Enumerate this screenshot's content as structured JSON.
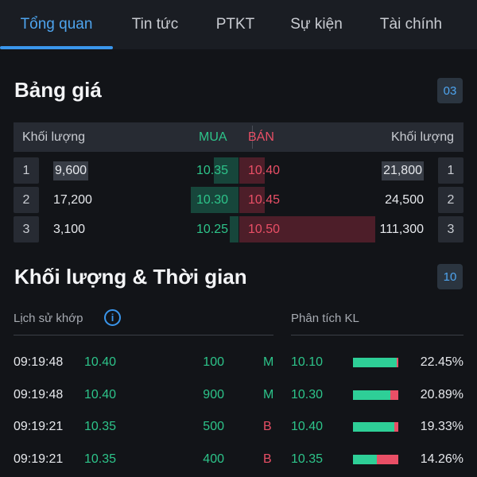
{
  "tabs": [
    {
      "label": "Tổng quan",
      "active": true
    },
    {
      "label": "Tin tức",
      "active": false
    },
    {
      "label": "PTKT",
      "active": false
    },
    {
      "label": "Sự kiện",
      "active": false
    },
    {
      "label": "Tài chính",
      "active": false
    }
  ],
  "price_board": {
    "title": "Bảng giá",
    "level_badge": "03",
    "header": {
      "bid_volume": "Khối lượng",
      "buy": "MUA",
      "sell": "BÁN",
      "ask_volume": "Khối lượng"
    },
    "rows": [
      {
        "idx": "1",
        "bid_volume": "9,600",
        "bid_price": "10.35",
        "ask_price": "10.40",
        "ask_volume": "21,800",
        "idx_right": "1",
        "bid_depth": 0.25,
        "ask_depth": 0.19
      },
      {
        "idx": "2",
        "bid_volume": "17,200",
        "bid_price": "10.30",
        "ask_price": "10.45",
        "ask_volume": "24,500",
        "idx_right": "2",
        "bid_depth": 0.48,
        "ask_depth": 0.19
      },
      {
        "idx": "3",
        "bid_volume": "3,100",
        "bid_price": "10.25",
        "ask_price": "10.50",
        "ask_volume": "111,300",
        "idx_right": "3",
        "bid_depth": 0.09,
        "ask_depth": 1.0
      }
    ]
  },
  "time_sales": {
    "title": "Khối lượng & Thời gian",
    "level_badge": "10",
    "history_label": "Lịch sử khớp",
    "analysis_label": "Phân tích KL",
    "trades": [
      {
        "time": "09:19:48",
        "price": "10.40",
        "volume": "100",
        "side": "M"
      },
      {
        "time": "09:19:48",
        "price": "10.40",
        "volume": "900",
        "side": "M"
      },
      {
        "time": "09:19:21",
        "price": "10.35",
        "volume": "500",
        "side": "B"
      },
      {
        "time": "09:19:21",
        "price": "10.35",
        "volume": "400",
        "side": "B"
      }
    ],
    "analysis": [
      {
        "price": "10.10",
        "percent": "22.45%",
        "buy_share": 0.97
      },
      {
        "price": "10.30",
        "percent": "20.89%",
        "buy_share": 0.82
      },
      {
        "price": "10.40",
        "percent": "19.33%",
        "buy_share": 0.92
      },
      {
        "price": "10.35",
        "percent": "14.26%",
        "buy_share": 0.52
      }
    ]
  },
  "colors": {
    "accent": "#3a96ec",
    "buy": "#2dc48a",
    "sell": "#e94f66",
    "background": "#121418"
  }
}
